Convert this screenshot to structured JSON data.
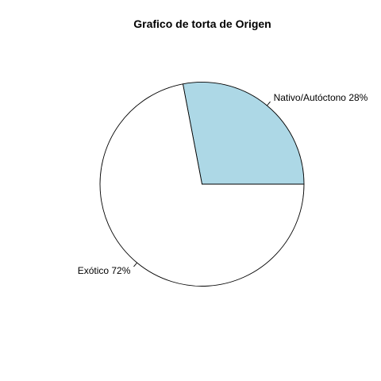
{
  "chart_data": {
    "type": "pie",
    "title": "Grafico de torta de Origen",
    "slices": [
      {
        "label": "Nativo/Autóctono 28%",
        "value": 28,
        "color": "#add8e6"
      },
      {
        "label": "Exótico 72%",
        "value": 72,
        "color": "#ffffff"
      }
    ],
    "start_angle_deg": 0,
    "direction": "counterclockwise",
    "border_color": "#000000"
  }
}
